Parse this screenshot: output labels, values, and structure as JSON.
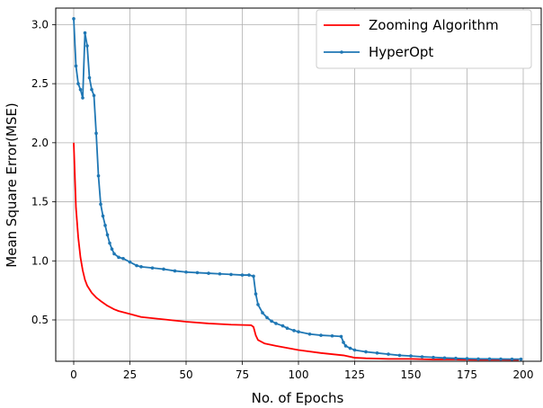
{
  "chart_data": {
    "type": "line",
    "title": "",
    "xlabel": "No. of Epochs",
    "ylabel": "Mean Square Error(MSE)",
    "xlim": [
      -8,
      208
    ],
    "ylim": [
      0.15,
      3.14
    ],
    "xticks": [
      0,
      25,
      50,
      75,
      100,
      125,
      150,
      175,
      200
    ],
    "yticks": [
      0.5,
      1.0,
      1.5,
      2.0,
      2.5,
      3.0
    ],
    "xtick_labels": [
      "0",
      "25",
      "50",
      "75",
      "100",
      "125",
      "150",
      "175",
      "200"
    ],
    "ytick_labels": [
      "0.5",
      "1.0",
      "1.5",
      "2.0",
      "2.5",
      "3.0"
    ],
    "grid": true,
    "legend_position": "top-right",
    "series": [
      {
        "name": "Zooming Algorithm",
        "color": "#ff0000",
        "marker": "none",
        "points": [
          [
            0,
            2.0
          ],
          [
            1,
            1.45
          ],
          [
            2,
            1.2
          ],
          [
            3,
            1.03
          ],
          [
            4,
            0.92
          ],
          [
            5,
            0.84
          ],
          [
            6,
            0.79
          ],
          [
            8,
            0.73
          ],
          [
            10,
            0.69
          ],
          [
            12,
            0.66
          ],
          [
            15,
            0.62
          ],
          [
            18,
            0.59
          ],
          [
            20,
            0.575
          ],
          [
            25,
            0.55
          ],
          [
            30,
            0.525
          ],
          [
            40,
            0.505
          ],
          [
            50,
            0.485
          ],
          [
            60,
            0.47
          ],
          [
            70,
            0.46
          ],
          [
            79,
            0.455
          ],
          [
            80,
            0.44
          ],
          [
            81,
            0.37
          ],
          [
            82,
            0.33
          ],
          [
            85,
            0.3
          ],
          [
            90,
            0.28
          ],
          [
            100,
            0.245
          ],
          [
            110,
            0.22
          ],
          [
            120,
            0.2
          ],
          [
            125,
            0.18
          ],
          [
            130,
            0.175
          ],
          [
            140,
            0.17
          ],
          [
            150,
            0.17
          ],
          [
            160,
            0.165
          ],
          [
            170,
            0.165
          ],
          [
            180,
            0.163
          ],
          [
            190,
            0.163
          ],
          [
            198,
            0.162
          ]
        ]
      },
      {
        "name": "HyperOpt",
        "color": "#1f77b4",
        "marker": "dot",
        "points": [
          [
            0,
            3.05
          ],
          [
            1,
            2.65
          ],
          [
            2,
            2.5
          ],
          [
            3,
            2.45
          ],
          [
            4,
            2.38
          ],
          [
            5,
            2.93
          ],
          [
            6,
            2.82
          ],
          [
            7,
            2.55
          ],
          [
            8,
            2.45
          ],
          [
            9,
            2.4
          ],
          [
            10,
            2.08
          ],
          [
            11,
            1.72
          ],
          [
            12,
            1.48
          ],
          [
            13,
            1.38
          ],
          [
            14,
            1.3
          ],
          [
            15,
            1.22
          ],
          [
            16,
            1.15
          ],
          [
            17,
            1.1
          ],
          [
            18,
            1.06
          ],
          [
            20,
            1.03
          ],
          [
            22,
            1.02
          ],
          [
            25,
            0.99
          ],
          [
            28,
            0.96
          ],
          [
            30,
            0.95
          ],
          [
            35,
            0.94
          ],
          [
            40,
            0.93
          ],
          [
            45,
            0.915
          ],
          [
            50,
            0.905
          ],
          [
            55,
            0.9
          ],
          [
            60,
            0.895
          ],
          [
            65,
            0.89
          ],
          [
            70,
            0.885
          ],
          [
            75,
            0.88
          ],
          [
            78,
            0.88
          ],
          [
            80,
            0.87
          ],
          [
            81,
            0.72
          ],
          [
            82,
            0.63
          ],
          [
            84,
            0.56
          ],
          [
            86,
            0.52
          ],
          [
            88,
            0.49
          ],
          [
            90,
            0.47
          ],
          [
            93,
            0.45
          ],
          [
            95,
            0.43
          ],
          [
            98,
            0.41
          ],
          [
            100,
            0.4
          ],
          [
            105,
            0.38
          ],
          [
            110,
            0.37
          ],
          [
            115,
            0.365
          ],
          [
            119,
            0.36
          ],
          [
            120,
            0.31
          ],
          [
            121,
            0.28
          ],
          [
            123,
            0.26
          ],
          [
            125,
            0.245
          ],
          [
            130,
            0.23
          ],
          [
            135,
            0.22
          ],
          [
            140,
            0.21
          ],
          [
            145,
            0.2
          ],
          [
            150,
            0.195
          ],
          [
            155,
            0.188
          ],
          [
            160,
            0.183
          ],
          [
            165,
            0.178
          ],
          [
            170,
            0.175
          ],
          [
            175,
            0.172
          ],
          [
            180,
            0.17
          ],
          [
            185,
            0.17
          ],
          [
            190,
            0.169
          ],
          [
            195,
            0.168
          ],
          [
            199,
            0.168
          ]
        ]
      }
    ]
  }
}
